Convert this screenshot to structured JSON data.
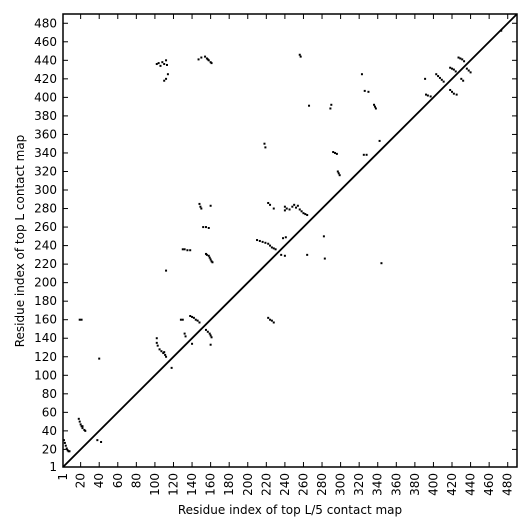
{
  "chart_data": {
    "type": "scatter",
    "x_label": "Residue index of top L/5 contact map",
    "y_label": "Residue index of top L contact map",
    "xlim": [
      1,
      490
    ],
    "ylim": [
      1,
      490
    ],
    "xticks": [
      1,
      20,
      40,
      60,
      80,
      100,
      120,
      140,
      160,
      180,
      200,
      220,
      240,
      260,
      280,
      300,
      320,
      340,
      360,
      380,
      400,
      420,
      440,
      460,
      480
    ],
    "yticks": [
      1,
      20,
      40,
      60,
      80,
      100,
      120,
      140,
      160,
      180,
      200,
      220,
      240,
      260,
      280,
      300,
      320,
      340,
      360,
      380,
      400,
      420,
      440,
      460,
      480
    ],
    "diagonal": true,
    "color": "#000000",
    "x": [
      2,
      3,
      4,
      5,
      6,
      7,
      8,
      18,
      19,
      20,
      21,
      22,
      24,
      25,
      22,
      19,
      21,
      40,
      38,
      42,
      102,
      102,
      103,
      105,
      107,
      109,
      111,
      112,
      110,
      102,
      104,
      106,
      108,
      110,
      112,
      113,
      112,
      110,
      114,
      112,
      118,
      128,
      130,
      132,
      133,
      130,
      132,
      135,
      138,
      138,
      140,
      142,
      144,
      146,
      148,
      140,
      147,
      150,
      154,
      156,
      158,
      160,
      161,
      157,
      148,
      149,
      150,
      152,
      155,
      158,
      160,
      155,
      157,
      159,
      160,
      161,
      160,
      155,
      156,
      158,
      159,
      160,
      161,
      162,
      210,
      213,
      216,
      219,
      218,
      219,
      222,
      224,
      226,
      228,
      230,
      222,
      224,
      228,
      222,
      224,
      226,
      228,
      236,
      240,
      240,
      242,
      245,
      248,
      250,
      252,
      254,
      256,
      258,
      260,
      262,
      264,
      240,
      238,
      241,
      256,
      257,
      266,
      264,
      282,
      283,
      289,
      290,
      292,
      294,
      296,
      297,
      298,
      299,
      323,
      326,
      330,
      325,
      328,
      336,
      337,
      338,
      342,
      344,
      392,
      394,
      397,
      403,
      405,
      407,
      409,
      411,
      418,
      420,
      422,
      424,
      418,
      420,
      422,
      425,
      427,
      429,
      431,
      433,
      436,
      438,
      440,
      430,
      432,
      391,
      473
    ],
    "y": [
      30,
      27,
      24,
      21,
      19,
      18,
      18,
      53,
      50,
      47,
      45,
      43,
      41,
      40,
      45,
      160,
      160,
      118,
      30,
      28,
      140,
      135,
      132,
      128,
      126,
      124,
      122,
      120,
      125,
      436,
      437,
      434,
      438,
      436,
      440,
      435,
      420,
      418,
      425,
      213,
      108,
      160,
      160,
      145,
      142,
      236,
      236,
      235,
      235,
      164,
      163,
      162,
      160,
      159,
      157,
      134,
      441,
      443,
      444,
      442,
      440,
      438,
      437,
      441,
      285,
      282,
      280,
      260,
      260,
      259,
      283,
      149,
      147,
      145,
      143,
      141,
      133,
      231,
      230,
      229,
      227,
      225,
      223,
      222,
      246,
      245,
      244,
      243,
      350,
      346,
      242,
      240,
      238,
      237,
      236,
      286,
      284,
      280,
      162,
      160,
      159,
      157,
      230,
      229,
      278,
      280,
      279,
      282,
      284,
      281,
      283,
      279,
      277,
      275,
      274,
      273,
      282,
      248,
      249,
      446,
      444,
      391,
      230,
      250,
      226,
      388,
      392,
      341,
      340,
      339,
      320,
      318,
      316,
      425,
      407,
      406,
      338,
      338,
      392,
      390,
      388,
      353,
      221,
      403,
      402,
      401,
      425,
      423,
      421,
      419,
      417,
      432,
      431,
      430,
      428,
      408,
      406,
      404,
      403,
      443,
      442,
      441,
      439,
      431,
      429,
      427,
      420,
      418,
      420,
      472
    ]
  }
}
